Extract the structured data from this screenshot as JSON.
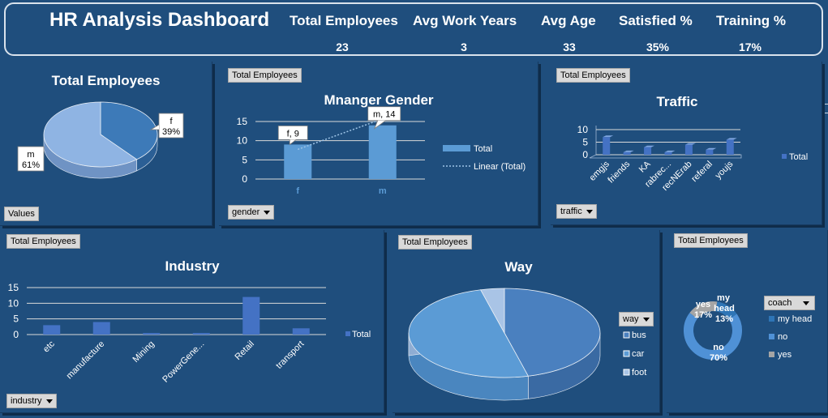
{
  "header": {
    "title": "HR Analysis Dashboard",
    "kpis": [
      {
        "label": "Total Employees",
        "value": "23"
      },
      {
        "label": "Avg Work Years",
        "value": "3"
      },
      {
        "label": "Avg Age",
        "value": "33"
      },
      {
        "label": "Satisfied %",
        "value": "35%"
      },
      {
        "label": "Training %",
        "value": "17%"
      }
    ]
  },
  "panels": {
    "total_employees_pie": {
      "title": "Total Employees",
      "button": "Values"
    },
    "manager_gender": {
      "field_button": "Total Employees",
      "filter_button": "gender"
    },
    "traffic": {
      "field_button": "Total Employees",
      "filter_button": "traffic"
    },
    "industry": {
      "field_button": "Total Employees",
      "filter_button": "industry"
    },
    "way": {
      "field_button": "Total Employees",
      "filter_button": "way"
    },
    "coach": {
      "field_button": "Total Employees",
      "filter_button": "coach"
    }
  },
  "colors": {
    "background": "#1f4e7d",
    "bar": "#4472c4",
    "light_bar": "#5b9bd5",
    "pie_dark": "#3d7ab8",
    "pie_light": "#8fb4e3",
    "gray": "#a5a5a5"
  },
  "chart_data": [
    {
      "id": "total_employees",
      "type": "pie",
      "title": "Total Employees",
      "categories": [
        "f",
        "m"
      ],
      "values": [
        39,
        61
      ],
      "data_labels": [
        "f\n39%",
        "m\n61%"
      ]
    },
    {
      "id": "manager_gender",
      "type": "bar",
      "title": "Mnanger Gender",
      "categories": [
        "f",
        "m"
      ],
      "series": [
        {
          "name": "Total",
          "values": [
            9,
            14
          ]
        }
      ],
      "trendline": "Linear (Total)",
      "data_labels": [
        "f, 9",
        "m, 14"
      ],
      "yticks": [
        "0",
        "5",
        "10",
        "15"
      ],
      "ylim": [
        0,
        15
      ],
      "legend": "right"
    },
    {
      "id": "traffic",
      "type": "bar",
      "title": "Traffic",
      "categories": [
        "emgjs",
        "friends",
        "KA",
        "rabrec...",
        "recNErab",
        "referal",
        "youjs"
      ],
      "series": [
        {
          "name": "Total",
          "values": [
            7,
            1,
            3,
            1,
            4,
            2,
            6
          ]
        }
      ],
      "yticks": [
        "0",
        "5",
        "10"
      ],
      "ylim": [
        0,
        10
      ],
      "legend": "right"
    },
    {
      "id": "industry",
      "type": "bar",
      "title": "Industry",
      "categories": [
        "etc",
        "manufacture",
        "Mining",
        "PowerGene...",
        "Retail",
        "transport"
      ],
      "series": [
        {
          "name": "Total",
          "values": [
            3,
            4,
            0.5,
            0.5,
            12,
            2
          ]
        }
      ],
      "yticks": [
        "0",
        "5",
        "10",
        "15"
      ],
      "ylim": [
        0,
        15
      ],
      "legend": "right"
    },
    {
      "id": "way",
      "type": "pie",
      "title": "Way",
      "categories": [
        "bus",
        "car",
        "foot"
      ],
      "values": [
        46,
        50,
        4
      ],
      "legend": "right"
    },
    {
      "id": "coach",
      "type": "pie",
      "title": "",
      "categories": [
        "my head",
        "no",
        "yes"
      ],
      "values": [
        13,
        70,
        17
      ],
      "data_labels": [
        "my head\n13%",
        "no\n70%",
        "yes\n17%"
      ],
      "legend": "right"
    }
  ]
}
